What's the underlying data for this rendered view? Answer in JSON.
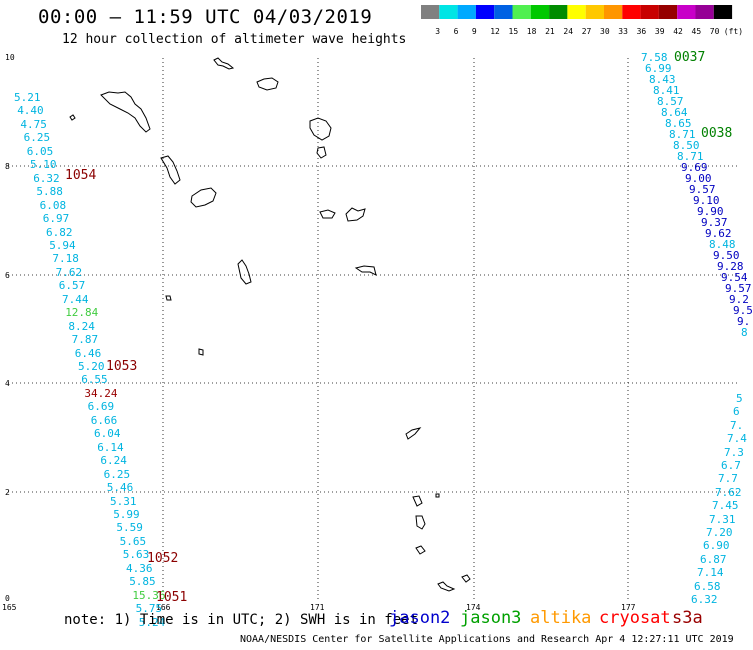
{
  "title": "00:00 – 11:59 UTC 04/03/2019",
  "subtitle": "12 hour collection of altimeter wave heights",
  "colorbar": {
    "colors": [
      "#808080",
      "#00e5e5",
      "#00a9ff",
      "#0000ff",
      "#0061e3",
      "#50f050",
      "#00c800",
      "#008c00",
      "#ffff00",
      "#ffc800",
      "#ff9600",
      "#ff0000",
      "#c80000",
      "#960000",
      "#c800c8",
      "#960096",
      "#000000"
    ],
    "labels": [
      "3",
      "6",
      "9",
      "12",
      "15",
      "18",
      "21",
      "24",
      "27",
      "30",
      "33",
      "36",
      "39",
      "42",
      "45",
      "70"
    ],
    "unit": "(ft)"
  },
  "axes": {
    "y_ticks": [
      "10",
      "8",
      "6",
      "4",
      "2",
      "0"
    ],
    "x_ticks": [
      "165",
      "166",
      "171",
      "174",
      "177"
    ]
  },
  "tracks": {
    "left_values": [
      "5.21",
      "4.40",
      "4.75",
      "6.25",
      "6.05",
      "5.10",
      "6.32",
      "5.88",
      "6.08",
      "6.97",
      "6.82",
      "5.94",
      "7.18",
      "7.62",
      "6.57",
      "7.44",
      "12.84",
      "8.24",
      "7.87",
      "6.46",
      "5.20",
      "6.55",
      "34.24",
      "6.69",
      "6.66",
      "6.04",
      "6.14",
      "6.24",
      "6.25",
      "5.46",
      "5.31",
      "5.99",
      "5.59",
      "5.65",
      "5.63",
      "4.36",
      "5.85",
      "15.36",
      "5.75",
      "5.24"
    ],
    "right_top_values": [
      "7.58",
      "6.99",
      "8.43",
      "8.41",
      "8.57",
      "8.64",
      "8.65",
      "8.71",
      "8.50",
      "8.71",
      "9.69",
      "9.00",
      "9.57",
      "9.10",
      "9.90",
      "9.37",
      "9.62",
      "8.48",
      "9.50",
      "9.28",
      "9.54",
      "9.57",
      "9.2",
      "9.5",
      "9.",
      "8"
    ],
    "right_bottom_values": [
      "5",
      "6",
      "7.",
      "7.4",
      "7.3",
      "6.7",
      "7.7",
      "7.62",
      "7.45",
      "7.31",
      "7.20",
      "6.90",
      "6.87",
      "7.14",
      "6.58",
      "6.32"
    ]
  },
  "pass_labels": [
    "0037",
    "0038",
    "1054",
    "1053",
    "1052",
    "1051"
  ],
  "note": "note: 1) Time is in UTC; 2) SWH is in feet",
  "satellites": [
    {
      "name": "jason2",
      "color": "#0000cc"
    },
    {
      "name": "jason3",
      "color": "#00a000"
    },
    {
      "name": "altika",
      "color": "#ff9900"
    },
    {
      "name": "cryosat",
      "color": "#ff0000"
    },
    {
      "name": "s3a",
      "color": "#990000"
    }
  ],
  "credit": "NOAA/NESDIS Center for Satellite Applications and Research   Apr  4 12:27:11 UTC 2019"
}
